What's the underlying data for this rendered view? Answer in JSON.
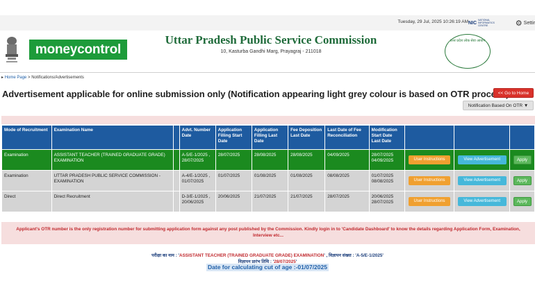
{
  "topbar": {
    "datetime": "Tuesday, 29 Jul, 2025 10:26:19 AM",
    "nic_logo": "NIC",
    "nic_sub": "NATIONAL INFORMATICS CENTRE",
    "settings_label": "Settir"
  },
  "header": {
    "moneycontrol_logo": "moneycontrol",
    "title": "Uttar Pradesh Public Service Commission",
    "address": "10, Kasturba Gandhi Marg, Prayagraj - 211018",
    "seal_text": "उत्तर प्रदेश लोक सेवा आयोग"
  },
  "breadcrumb": {
    "home": "Home Page",
    "current": " > Notifications/Advertisements"
  },
  "page_title": "Advertisement applicable for online submission only (Notification appearing light grey colour is based on OTR process)",
  "buttons": {
    "go_home": "<< Go to Home",
    "notification_otr": "Notification Based On OTR ▼"
  },
  "table": {
    "headers": {
      "mode": "Mode of Recruitment",
      "exam": "Examination Name",
      "advt": "Advt. Number Date",
      "start": "Application Filling Start Date",
      "last": "Application Filling Last Date",
      "fee_dep": "Fee Deposition Last Date",
      "fee_rec": "Last Date of Fee Reconciliation",
      "mod": "Modification Start Date Last Date"
    },
    "rows": [
      {
        "mode": "Examination",
        "exam": "ASSISTANT TEACHER (TRAINED GRADUATE GRADE) EXAMINATION",
        "advt": "A-5/E-1/2025 , 28/07/2025",
        "start": "28/07/2025",
        "last": "28/08/2025",
        "fee_dep": "28/08/2025",
        "fee_rec": "04/09/2025",
        "mod": "28/07/2025 04/09/2025",
        "user_instructions": "User Instructions",
        "view_advertisement": "View Advertisement",
        "apply": "Apply"
      },
      {
        "mode": "Examination",
        "exam": "UTTAR PRADESH PUBLIC SERVICE COMMISSION - EXAMINATION",
        "advt": "A-4/E-1/2025 , 01/07/2025",
        "start": "01/07/2025",
        "last": "01/08/2025",
        "fee_dep": "01/08/2025",
        "fee_rec": "08/08/2025",
        "mod": "01/07/2025 08/08/2025",
        "user_instructions": "User Instructions",
        "view_advertisement": "View Advertisement",
        "apply": "Apply"
      },
      {
        "mode": "Direct",
        "exam": "Direct Recruitment",
        "advt": "D-3/E-1/2025 , 20/06/2025",
        "start": "20/06/2025",
        "last": "21/07/2025",
        "fee_dep": "21/07/2025",
        "fee_rec": "28/07/2025",
        "mod": "20/06/2025 28/07/2025",
        "user_instructions": "User Instructions",
        "view_advertisement": "View Advertisement",
        "apply": "Apply"
      }
    ]
  },
  "notice": "Applicant's OTR number is the only registration number for submitting application form against any post published by the Commission. Kindly login in to 'Candidate Dashboard' to know the details regarding Application Form, Examination, Interview etc...",
  "footer": {
    "exam_prefix": "परीक्षा का नाम : '",
    "exam_name": "ASSISTANT TEACHER (TRAINED GRADUATE GRADE) EXAMINATION",
    "advt_prefix": "' , विज्ञापन संख्या : '",
    "advt_no": "A-5/E-1/2025",
    "start_prefix": "विज्ञापन प्रारंभ तिथि : '",
    "start_date": "28/07/2025",
    "start_suffix": "'",
    "cutoff": "Date for calculating cut of age :-01/07/2025"
  },
  "colors": {
    "header_blue": "#1e5ba0",
    "row_green": "#1b8a1f",
    "row_grey": "#d4d4d4",
    "title_green": "#1f6b3a",
    "notice_red": "#c0282d"
  }
}
